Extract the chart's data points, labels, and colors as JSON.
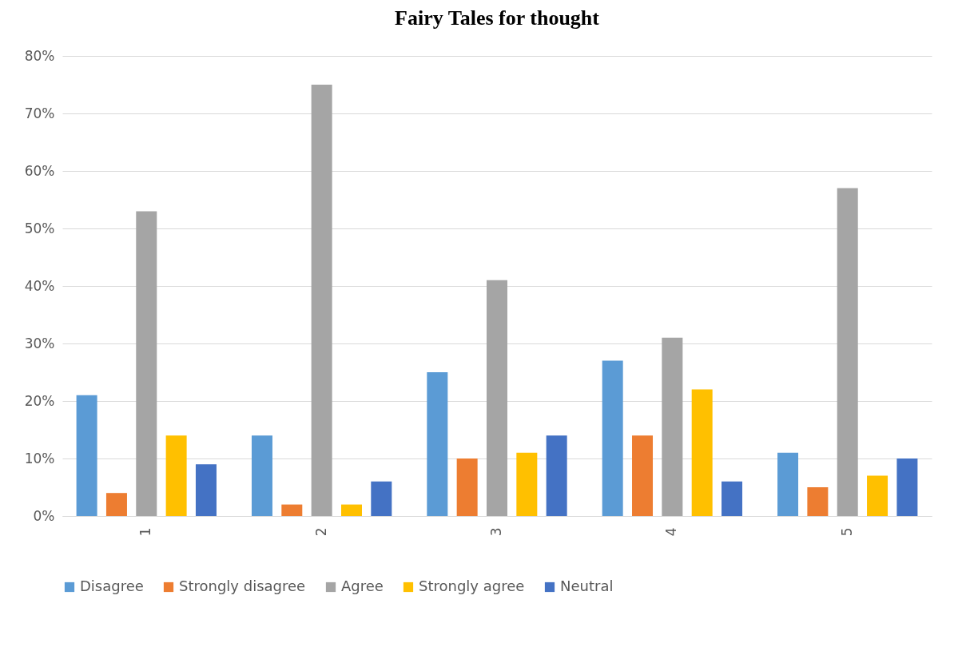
{
  "chart_data": {
    "type": "bar",
    "title": "Fairy Tales for thought",
    "categories": [
      "1",
      "2",
      "3",
      "4",
      "5"
    ],
    "series": [
      {
        "name": "Disagree",
        "color": "#5b9bd5",
        "values": [
          21,
          14,
          25,
          27,
          11
        ]
      },
      {
        "name": "Strongly disagree",
        "color": "#ed7d31",
        "values": [
          4,
          2,
          10,
          14,
          5
        ]
      },
      {
        "name": "Agree",
        "color": "#a5a5a5",
        "values": [
          53,
          75,
          41,
          31,
          57
        ]
      },
      {
        "name": "Strongly agree",
        "color": "#ffc000",
        "values": [
          14,
          2,
          11,
          22,
          7
        ]
      },
      {
        "name": "Neutral",
        "color": "#4472c4",
        "values": [
          9,
          6,
          14,
          6,
          10
        ]
      }
    ],
    "ylim": [
      0,
      80
    ],
    "yticks": [
      {
        "value": 0,
        "label": "0%"
      },
      {
        "value": 10,
        "label": "10%"
      },
      {
        "value": 20,
        "label": "20%"
      },
      {
        "value": 30,
        "label": "30%"
      },
      {
        "value": 40,
        "label": "40%"
      },
      {
        "value": 50,
        "label": "50%"
      },
      {
        "value": 60,
        "label": "60%"
      },
      {
        "value": 70,
        "label": "70%"
      },
      {
        "value": 80,
        "label": "80%"
      }
    ],
    "grid": "y",
    "legend": "bottom"
  }
}
